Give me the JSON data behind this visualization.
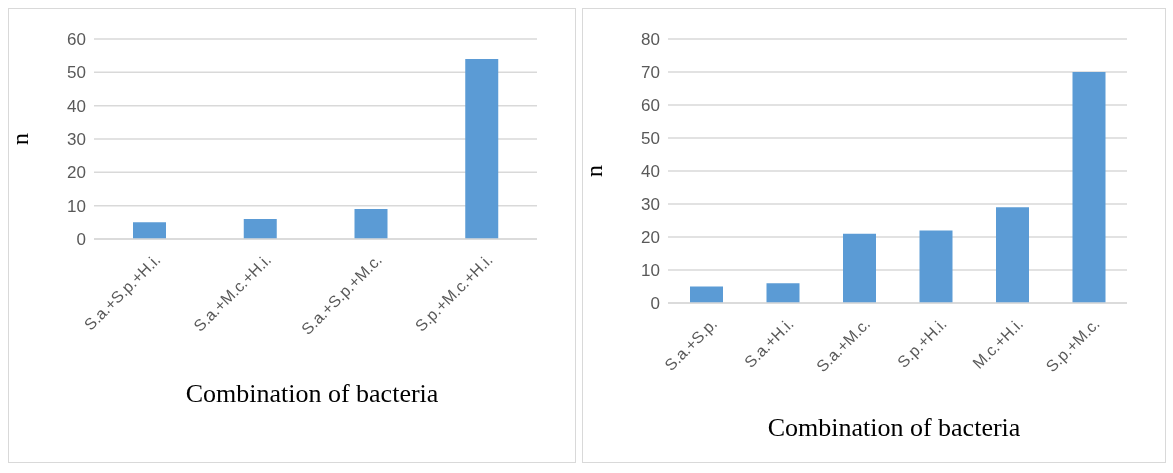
{
  "chart_data": [
    {
      "type": "bar",
      "xlabel": "Combination of bacteria",
      "ylabel": "n",
      "categories": [
        "S.a.+S.p.+H.i.",
        "S.a.+M.c.+H.i.",
        "S.a.+S.p.+M.c.",
        "S.p.+M.c.+H.i."
      ],
      "values": [
        5,
        6,
        9,
        54
      ],
      "color": "#5b9bd5",
      "ylim": [
        0,
        60
      ],
      "yticks": [
        0,
        10,
        20,
        30,
        40,
        50,
        60
      ],
      "grid": "y",
      "legend": false
    },
    {
      "type": "bar",
      "xlabel": "Combination of bacteria",
      "ylabel": "n",
      "categories": [
        "S.a.+S.p.",
        "S.a.+H.i.",
        "S.a.+M.c.",
        "S.p.+H.i.",
        "M.c.+H.i.",
        "S.p.+M.c."
      ],
      "values": [
        5,
        6,
        21,
        22,
        29,
        70
      ],
      "color": "#5b9bd5",
      "ylim": [
        0,
        80
      ],
      "yticks": [
        0,
        10,
        20,
        30,
        40,
        50,
        60,
        70,
        80
      ],
      "grid": "y",
      "legend": false
    }
  ]
}
